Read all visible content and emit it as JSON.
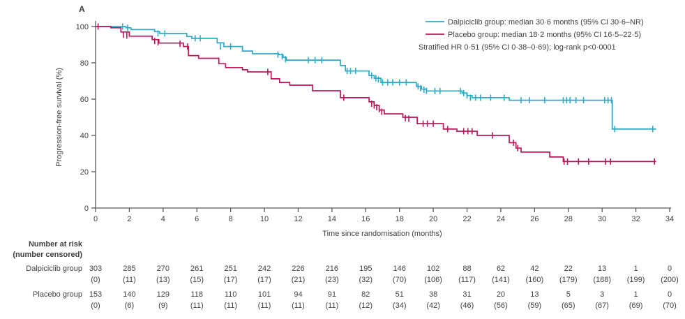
{
  "figure": {
    "panel_label": "A",
    "colors": {
      "dalpiciclib": "#2CA9C9",
      "placebo": "#BE155A",
      "axis": "#59585C",
      "text": "#3F3E40"
    },
    "legend": {
      "entries": [
        {
          "series": "dalpiciclib",
          "label": "Dalpiciclib group: median 30·6 months (95% CI 30·6–NR)"
        },
        {
          "series": "placebo",
          "label": "Placebo group: median 18·2 months (95% CI 16·5–22·5)"
        }
      ],
      "annotation": "Stratified HR 0·51 (95% CI 0·38–0·69); log-rank p<0·0001"
    }
  },
  "chart_data": {
    "type": "line",
    "subtype": "kaplan-meier-step",
    "title": "",
    "xlabel": "Time since randomisation (months)",
    "ylabel": "Progression-free survival (%)",
    "xlim": [
      0,
      34
    ],
    "ylim": [
      0,
      100
    ],
    "xticks": [
      0,
      2,
      4,
      6,
      8,
      10,
      12,
      14,
      16,
      18,
      20,
      22,
      24,
      26,
      28,
      30,
      32,
      34
    ],
    "yticks": [
      0,
      20,
      40,
      60,
      80,
      100
    ],
    "grid": false,
    "legend_position": "top-right",
    "series": [
      {
        "name": "Dalpiciclib group",
        "color": "#2CA9C9",
        "median_months": "30·6",
        "ci_95": "30·6–NR",
        "steps": [
          [
            0,
            100
          ],
          [
            1.8,
            99.3
          ],
          [
            2.1,
            98.3
          ],
          [
            3.5,
            97.2
          ],
          [
            3.8,
            96.2
          ],
          [
            5.4,
            94.5
          ],
          [
            5.7,
            93.5
          ],
          [
            7.2,
            91
          ],
          [
            7.6,
            89
          ],
          [
            8.7,
            86.5
          ],
          [
            9.3,
            85
          ],
          [
            10.85,
            84.5
          ],
          [
            11.1,
            83
          ],
          [
            11.3,
            81.5
          ],
          [
            14.5,
            78.5
          ],
          [
            14.8,
            75.5
          ],
          [
            16.2,
            73
          ],
          [
            16.5,
            71.5
          ],
          [
            16.9,
            69.2
          ],
          [
            19.0,
            67
          ],
          [
            19.3,
            65.5
          ],
          [
            19.6,
            64.5
          ],
          [
            21.7,
            63.3
          ],
          [
            22.0,
            62
          ],
          [
            22.3,
            60.8
          ],
          [
            24.5,
            59.4
          ],
          [
            30.6,
            43.5
          ],
          [
            33.2,
            43.5
          ]
        ],
        "censor_marks": [
          [
            1.6,
            100
          ],
          [
            1.9,
            99.3
          ],
          [
            3.7,
            96.2
          ],
          [
            4.1,
            96.2
          ],
          [
            5.9,
            93.5
          ],
          [
            6.2,
            93.5
          ],
          [
            7.4,
            89
          ],
          [
            8.0,
            89
          ],
          [
            10.8,
            84.5
          ],
          [
            11.05,
            83.5
          ],
          [
            11.25,
            82
          ],
          [
            12.6,
            81.5
          ],
          [
            13.0,
            81.5
          ],
          [
            13.4,
            81.5
          ],
          [
            14.9,
            75.5
          ],
          [
            15.1,
            75.5
          ],
          [
            15.4,
            75.5
          ],
          [
            16.35,
            73
          ],
          [
            16.6,
            71.5
          ],
          [
            16.75,
            70.8
          ],
          [
            17.0,
            69.2
          ],
          [
            17.3,
            69.2
          ],
          [
            17.6,
            69.2
          ],
          [
            18.0,
            69.2
          ],
          [
            18.4,
            69.2
          ],
          [
            19.1,
            67
          ],
          [
            19.25,
            66
          ],
          [
            19.45,
            65.2
          ],
          [
            19.6,
            64.6
          ],
          [
            20.1,
            64.5
          ],
          [
            20.4,
            64.5
          ],
          [
            21.6,
            64.5
          ],
          [
            21.8,
            63.3
          ],
          [
            22.0,
            62
          ],
          [
            22.2,
            60.8
          ],
          [
            22.5,
            60.8
          ],
          [
            22.8,
            60.8
          ],
          [
            23.4,
            60.8
          ],
          [
            24.2,
            60.8
          ],
          [
            25.2,
            59.4
          ],
          [
            25.7,
            59.4
          ],
          [
            26.6,
            59.4
          ],
          [
            27.7,
            59.4
          ],
          [
            27.9,
            59.4
          ],
          [
            28.1,
            59.4
          ],
          [
            28.45,
            59.4
          ],
          [
            28.9,
            59.4
          ],
          [
            30.15,
            59.4
          ],
          [
            30.35,
            59.4
          ],
          [
            30.55,
            59.4
          ],
          [
            30.75,
            43.5
          ],
          [
            33.0,
            43.5
          ]
        ]
      },
      {
        "name": "Placebo group",
        "color": "#BE155A",
        "median_months": "18·2",
        "ci_95": "16·5–22·5",
        "steps": [
          [
            0,
            100
          ],
          [
            0.9,
            99.3
          ],
          [
            1.5,
            97
          ],
          [
            2.0,
            94.7
          ],
          [
            3.35,
            92.8
          ],
          [
            3.75,
            90.9
          ],
          [
            5.2,
            89
          ],
          [
            5.5,
            84
          ],
          [
            6.1,
            82.5
          ],
          [
            7.3,
            79.5
          ],
          [
            7.7,
            77.4
          ],
          [
            8.7,
            76.2
          ],
          [
            9.0,
            75
          ],
          [
            10.4,
            71.2
          ],
          [
            10.9,
            69.2
          ],
          [
            11.5,
            67.7
          ],
          [
            12.85,
            64.6
          ],
          [
            14.5,
            60.8
          ],
          [
            16.2,
            58.5
          ],
          [
            16.5,
            56.5
          ],
          [
            16.8,
            54
          ],
          [
            17.1,
            51.9
          ],
          [
            18.2,
            50
          ],
          [
            19.05,
            46.5
          ],
          [
            20.6,
            43.5
          ],
          [
            21.4,
            42.3
          ],
          [
            22.6,
            40
          ],
          [
            24.5,
            36
          ],
          [
            24.9,
            33
          ],
          [
            25.2,
            30.8
          ],
          [
            26.9,
            28.1
          ],
          [
            27.7,
            25.6
          ],
          [
            33.2,
            25.6
          ]
        ],
        "censor_marks": [
          [
            0.15,
            100
          ],
          [
            1.65,
            95.5
          ],
          [
            1.85,
            95
          ],
          [
            3.5,
            92
          ],
          [
            3.7,
            91.3
          ],
          [
            5.0,
            90.5
          ],
          [
            5.45,
            89
          ],
          [
            10.2,
            75
          ],
          [
            14.7,
            60.8
          ],
          [
            16.35,
            57.5
          ],
          [
            16.5,
            56.5
          ],
          [
            16.65,
            55.5
          ],
          [
            16.8,
            54.5
          ],
          [
            16.95,
            53
          ],
          [
            18.35,
            49.5
          ],
          [
            18.55,
            49.2
          ],
          [
            19.4,
            46.5
          ],
          [
            19.65,
            46.5
          ],
          [
            20.0,
            46.5
          ],
          [
            20.85,
            43.5
          ],
          [
            21.8,
            42.3
          ],
          [
            22.05,
            42.3
          ],
          [
            22.3,
            42.3
          ],
          [
            23.5,
            40
          ],
          [
            24.75,
            36
          ],
          [
            25.0,
            33
          ],
          [
            27.75,
            25.6
          ],
          [
            27.95,
            25.6
          ],
          [
            28.6,
            25.6
          ],
          [
            29.2,
            25.6
          ],
          [
            30.2,
            25.6
          ],
          [
            30.5,
            25.6
          ],
          [
            33.1,
            25.6
          ]
        ]
      }
    ]
  },
  "risk_table": {
    "header_line1": "Number at risk",
    "header_line2": "(number censored)",
    "time_points": [
      0,
      2,
      4,
      6,
      8,
      10,
      12,
      14,
      16,
      18,
      20,
      22,
      24,
      26,
      28,
      30,
      32,
      34
    ],
    "rows": [
      {
        "label": "Dalpiciclib group",
        "at_risk": [
          "303",
          "285",
          "270",
          "261",
          "251",
          "242",
          "226",
          "216",
          "195",
          "146",
          "102",
          "88",
          "62",
          "42",
          "22",
          "13",
          "1",
          "0"
        ],
        "censored": [
          "(0)",
          "(11)",
          "(13)",
          "(15)",
          "(17)",
          "(17)",
          "(21)",
          "(23)",
          "(32)",
          "(70)",
          "(106)",
          "(117)",
          "(141)",
          "(160)",
          "(179)",
          "(188)",
          "(199)",
          "(200)"
        ]
      },
      {
        "label": "Placebo group",
        "at_risk": [
          "153",
          "140",
          "129",
          "118",
          "110",
          "101",
          "94",
          "91",
          "82",
          "51",
          "38",
          "31",
          "20",
          "13",
          "5",
          "3",
          "1",
          "0"
        ],
        "censored": [
          "(0)",
          "(6)",
          "(9)",
          "(11)",
          "(11)",
          "(11)",
          "(11)",
          "(11)",
          "(12)",
          "(34)",
          "(42)",
          "(46)",
          "(56)",
          "(59)",
          "(65)",
          "(67)",
          "(69)",
          "(70)"
        ]
      }
    ]
  }
}
